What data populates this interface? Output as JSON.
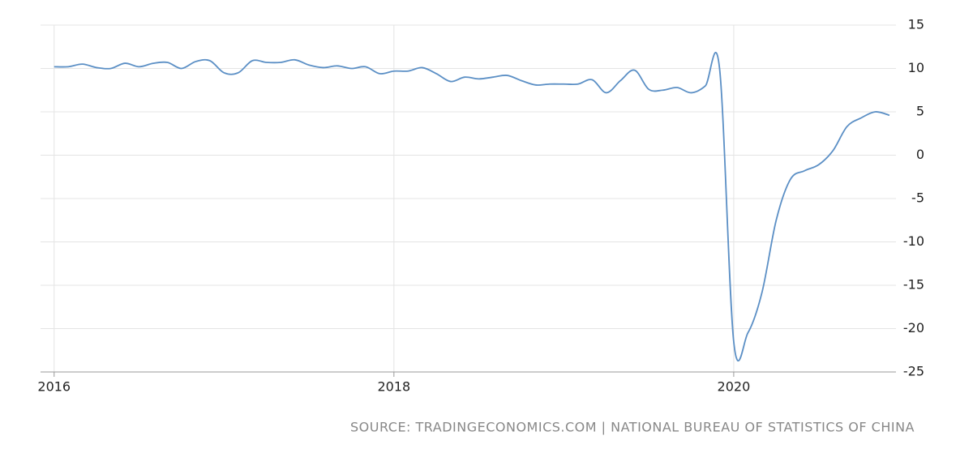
{
  "chart_data": {
    "type": "line",
    "source": "SOURCE: TRADINGECONOMICS.COM | NATIONAL BUREAU OF STATISTICS OF CHINA",
    "x": [
      2016,
      2016.0833,
      2016.1667,
      2016.25,
      2016.3333,
      2016.4167,
      2016.5,
      2016.5833,
      2016.6667,
      2016.75,
      2016.8333,
      2016.9167,
      2017,
      2017.0833,
      2017.1667,
      2017.25,
      2017.3333,
      2017.4167,
      2017.5,
      2017.5833,
      2017.6667,
      2017.75,
      2017.8333,
      2017.9167,
      2018,
      2018.0833,
      2018.1667,
      2018.25,
      2018.3333,
      2018.4167,
      2018.5,
      2018.5833,
      2018.6667,
      2018.75,
      2018.8333,
      2018.9167,
      2019,
      2019.0833,
      2019.1667,
      2019.25,
      2019.3333,
      2019.4167,
      2019.5,
      2019.5833,
      2019.6667,
      2019.75,
      2019.8333,
      2019.9167,
      2020,
      2020.0833,
      2020.1667,
      2020.25,
      2020.3333,
      2020.4167,
      2020.5,
      2020.5833,
      2020.6667,
      2020.75,
      2020.8333,
      2020.9167
    ],
    "series": [
      {
        "color": "#5b8fc5",
        "values": [
          10.2,
          10.2,
          10.5,
          10.1,
          10.0,
          10.6,
          10.2,
          10.6,
          10.7,
          10.0,
          10.8,
          10.9,
          9.5,
          9.5,
          10.9,
          10.7,
          10.7,
          11.0,
          10.4,
          10.1,
          10.3,
          10.0,
          10.2,
          9.4,
          9.7,
          9.7,
          10.1,
          9.4,
          8.5,
          9.0,
          8.8,
          9.0,
          9.2,
          8.6,
          8.1,
          8.2,
          8.2,
          8.2,
          8.7,
          7.2,
          8.6,
          9.8,
          7.6,
          7.5,
          7.8,
          7.2,
          8.0,
          10.0,
          -21.5,
          -20.5,
          -15.8,
          -7.5,
          -2.8,
          -1.8,
          -1.1,
          0.5,
          3.3,
          4.3,
          5.0,
          4.6
        ]
      }
    ],
    "xlim": [
      2015.92,
      2020.955
    ],
    "xticks": [
      2016,
      2018,
      2020
    ],
    "ylim": [
      -25,
      15
    ],
    "yticks": [
      15,
      10,
      5,
      0,
      -5,
      -10,
      -15,
      -20,
      -25
    ],
    "grid": true
  }
}
